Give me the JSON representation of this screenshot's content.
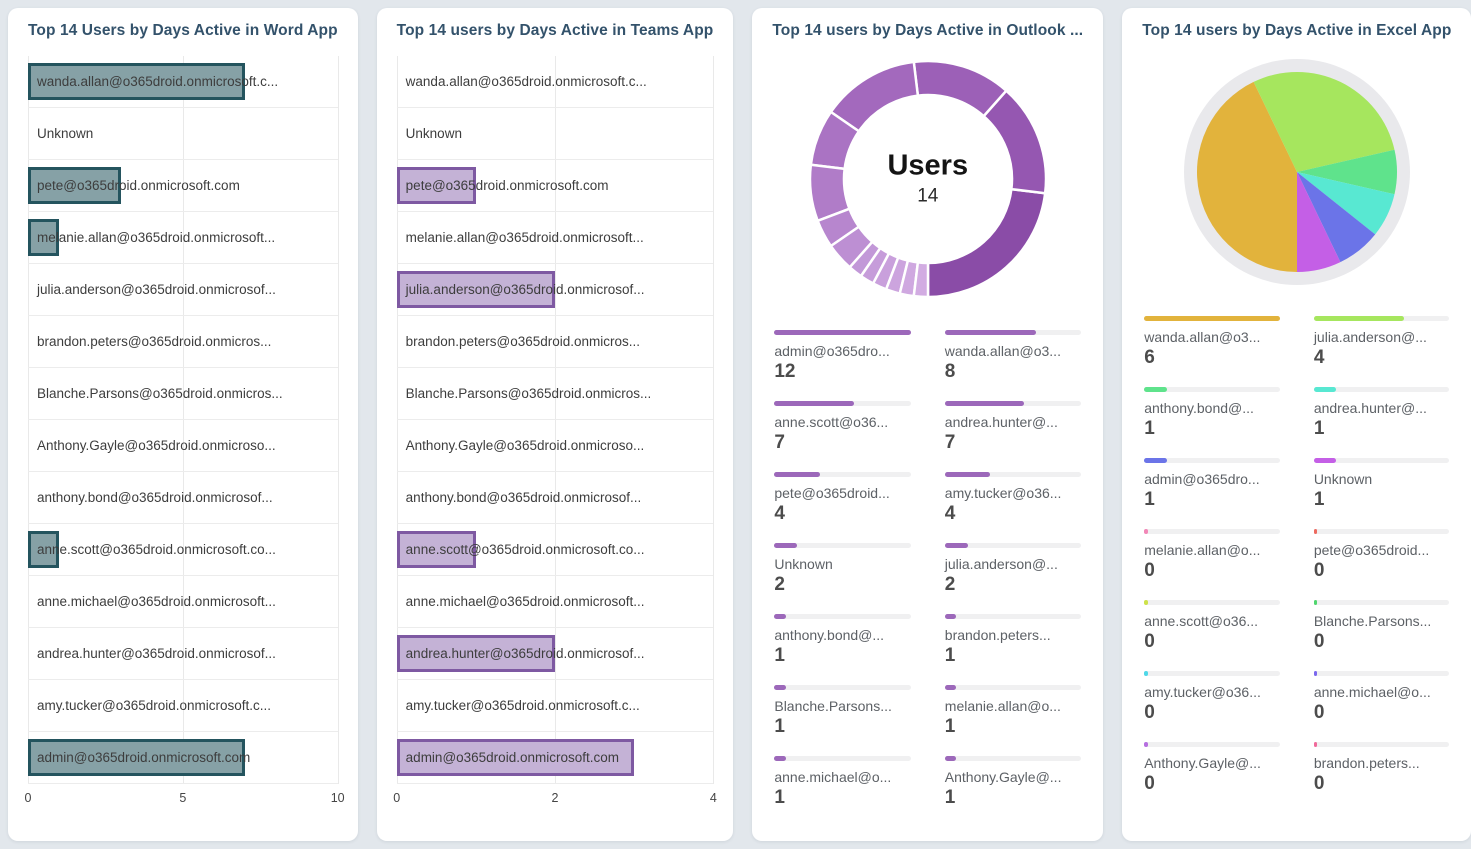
{
  "page": {
    "background": "#e2e7ec",
    "card_background": "#ffffff",
    "title_color": "#33526b"
  },
  "chart_data": [
    {
      "type": "bar",
      "title": "Top 14 Users by Days Active in Word App",
      "orientation": "horizontal",
      "xlabel": "",
      "ylabel": "",
      "xlim": [
        0,
        10
      ],
      "ticks": [
        0,
        5,
        10
      ],
      "grid": true,
      "bar_border_color": "#24545e",
      "bar_fill_color": "#86a1a6",
      "categories": [
        "wanda.allan@o365droid.onmicrosoft.c...",
        "Unknown",
        "pete@o365droid.onmicrosoft.com",
        "melanie.allan@o365droid.onmicrosoft...",
        "julia.anderson@o365droid.onmicrosof...",
        "brandon.peters@o365droid.onmicros...",
        "Blanche.Parsons@o365droid.onmicros...",
        "Anthony.Gayle@o365droid.onmicroso...",
        "anthony.bond@o365droid.onmicrosof...",
        "anne.scott@o365droid.onmicrosoft.co...",
        "anne.michael@o365droid.onmicrosoft...",
        "andrea.hunter@o365droid.onmicrosof...",
        "amy.tucker@o365droid.onmicrosoft.c...",
        "admin@o365droid.onmicrosoft.com"
      ],
      "values": [
        7,
        0,
        3,
        1,
        0,
        0,
        0,
        0,
        0,
        1,
        0,
        0,
        0,
        7
      ]
    },
    {
      "type": "bar",
      "title": "Top 14 users by Days Active in Teams App",
      "orientation": "horizontal",
      "xlabel": "",
      "ylabel": "",
      "xlim": [
        0,
        4
      ],
      "ticks": [
        0,
        2,
        4
      ],
      "grid": true,
      "bar_border_color": "#7e59a2",
      "bar_fill_color": "#c4b2d6",
      "categories": [
        "wanda.allan@o365droid.onmicrosoft.c...",
        "Unknown",
        "pete@o365droid.onmicrosoft.com",
        "melanie.allan@o365droid.onmicrosoft...",
        "julia.anderson@o365droid.onmicrosof...",
        "brandon.peters@o365droid.onmicros...",
        "Blanche.Parsons@o365droid.onmicros...",
        "Anthony.Gayle@o365droid.onmicroso...",
        "anthony.bond@o365droid.onmicrosof...",
        "anne.scott@o365droid.onmicrosoft.co...",
        "anne.michael@o365droid.onmicrosoft...",
        "andrea.hunter@o365droid.onmicrosof...",
        "amy.tucker@o365droid.onmicrosoft.c...",
        "admin@o365droid.onmicrosoft.com"
      ],
      "values": [
        0,
        0,
        1,
        0,
        2,
        0,
        0,
        0,
        0,
        1,
        0,
        2,
        0,
        3
      ]
    },
    {
      "type": "donut",
      "title": "Top 14 users by Days Active in Outlook ...",
      "center_title": "Users",
      "center_value": "14",
      "legend_bar_color": "#9c68ba",
      "legend_position": "bottom-grid",
      "labels": [
        "admin@o365dro...",
        "wanda.allan@o3...",
        "anne.scott@o36...",
        "andrea.hunter@...",
        "pete@o365droid...",
        "amy.tucker@o36...",
        "Unknown",
        "julia.anderson@...",
        "anthony.bond@...",
        "brandon.peters...",
        "Blanche.Parsons...",
        "melanie.allan@o...",
        "anne.michael@o...",
        "Anthony.Gayle@..."
      ],
      "values": [
        12,
        8,
        7,
        7,
        4,
        4,
        2,
        2,
        1,
        1,
        1,
        1,
        1,
        1
      ],
      "colors": [
        "#8a4ca7",
        "#9557b1",
        "#9c60b7",
        "#a369bd",
        "#aa73c3",
        "#b07cc8",
        "#b786ce",
        "#bd8fd3",
        "#c298d8",
        "#c69cda",
        "#c9a0dc",
        "#cca4de",
        "#cfa8e0",
        "#d2ace2"
      ]
    },
    {
      "type": "pie",
      "title": "Top 14 users by Days Active in Excel App",
      "ring_color": "#e9e9ec",
      "legend_position": "bottom-grid",
      "labels": [
        "wanda.allan@o3...",
        "julia.anderson@...",
        "anthony.bond@...",
        "andrea.hunter@...",
        "admin@o365dro...",
        "Unknown",
        "melanie.allan@o...",
        "pete@o365droid...",
        "anne.scott@o36...",
        "Blanche.Parsons...",
        "amy.tucker@o36...",
        "anne.michael@o...",
        "Anthony.Gayle@...",
        "brandon.peters..."
      ],
      "values": [
        6,
        4,
        1,
        1,
        1,
        1,
        0,
        0,
        0,
        0,
        0,
        0,
        0,
        0
      ],
      "colors": [
        "#e2b33c",
        "#a6e65e",
        "#5fe38c",
        "#58e8d2",
        "#6b74e8",
        "#c45fe6",
        "#f287b7",
        "#ed6a5f",
        "#cde24a",
        "#50d66e",
        "#4fd8e8",
        "#7b68ee",
        "#b66fe0",
        "#f06a9b"
      ]
    }
  ]
}
